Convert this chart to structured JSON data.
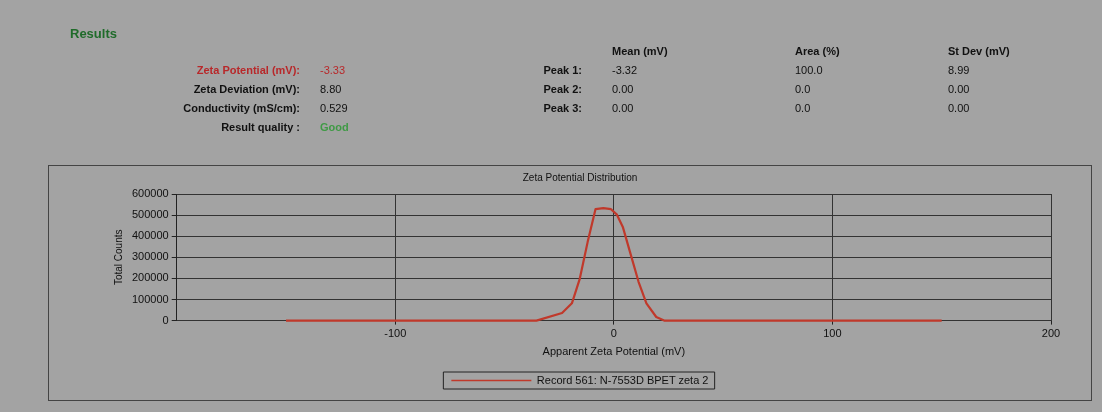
{
  "chart_data": [
    {
      "type": "other",
      "title": "Results",
      "annotations": [
        "Zeta Potential (mV):",
        "-3.33",
        "Zeta Deviation (mV):",
        "8.80",
        "Conductivity (mS/cm):",
        "0.529",
        "Result quality :",
        "Good",
        "Mean (mV)",
        "Area (%)",
        "St Dev (mV)",
        "Peak 1:",
        "-3.32",
        "100.0",
        "8.99",
        "Peak 2:",
        "0.00",
        "0.0",
        "0.00",
        "Peak 3:",
        "0.00",
        "0.0",
        "0.00"
      ]
    },
    {
      "type": "line",
      "title": "Zeta Potential Distribution",
      "xlabel": "Apparent Zeta Potential (mV)",
      "ylabel": "Total Counts",
      "x": [
        -150,
        -35.4,
        -23.7,
        -19.2,
        -15.6,
        -12,
        -8.4,
        -4.8,
        -1.3,
        1.4,
        4.1,
        7.7,
        11.3,
        14.9,
        19.4,
        23,
        150
      ],
      "series": [
        {
          "name": "Record 561: N-7553D BPET zeta 2",
          "color": "#c0392b",
          "values": [
            0,
            0,
            36000,
            82000,
            198000,
            372000,
            528000,
            533000,
            528000,
            502000,
            444000,
            314000,
            184000,
            82000,
            17000,
            0,
            0
          ]
        }
      ],
      "xlim": [
        -200,
        200
      ],
      "xticks": [
        -100,
        0,
        100,
        200
      ],
      "ylim": [
        0,
        600000
      ],
      "yticks": [
        0,
        100000,
        200000,
        300000,
        400000,
        500000,
        600000
      ],
      "grid": true,
      "legend": "bottom",
      "marker": "none"
    }
  ]
}
